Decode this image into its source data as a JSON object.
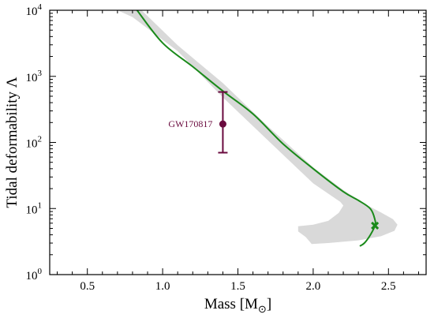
{
  "chart_data": {
    "type": "line",
    "xlabel": "Mass [M",
    "xlabel_sub": "⊙",
    "xlabel_close": "]",
    "ylabel": "Tidal deformability Λ",
    "xlim": [
      0.25,
      2.75
    ],
    "ylim_log10": [
      0,
      4
    ],
    "yscale": "log",
    "x_ticks": [
      0.5,
      1.0,
      1.5,
      2.0,
      2.5
    ],
    "x_tick_labels": [
      "0.5",
      "1.0",
      "1.5",
      "2.0",
      "2.5"
    ],
    "y_ticks": [
      1,
      10,
      100,
      1000,
      10000
    ],
    "y_tick_labels": [
      {
        "base": "10",
        "exp": "0"
      },
      {
        "base": "10",
        "exp": "1"
      },
      {
        "base": "10",
        "exp": "2"
      },
      {
        "base": "10",
        "exp": "3"
      },
      {
        "base": "10",
        "exp": "4"
      }
    ],
    "grid": false,
    "band": {
      "color": "#d9d9d9",
      "outline": [
        [
          0.62,
          10000
        ],
        [
          0.86,
          10000
        ],
        [
          1.1,
          2950
        ],
        [
          1.4,
          790
        ],
        [
          1.7,
          175
        ],
        [
          2.0,
          42
        ],
        [
          2.2,
          19
        ],
        [
          2.35,
          11.5
        ],
        [
          2.45,
          8.7
        ],
        [
          2.53,
          6.9
        ],
        [
          2.56,
          5.7
        ],
        [
          2.54,
          4.6
        ],
        [
          2.45,
          3.8
        ],
        [
          2.3,
          3.3
        ],
        [
          2.1,
          3.0
        ],
        [
          1.99,
          2.9
        ],
        [
          1.95,
          3.7
        ],
        [
          1.9,
          4.5
        ],
        [
          1.9,
          5.4
        ],
        [
          2.0,
          5.7
        ],
        [
          2.1,
          6.5
        ],
        [
          2.17,
          8.6
        ],
        [
          2.2,
          11.1
        ],
        [
          2.18,
          12.6
        ],
        [
          2.0,
          24
        ],
        [
          1.7,
          107
        ],
        [
          1.4,
          480
        ],
        [
          1.1,
          2400
        ],
        [
          0.8,
          7900
        ],
        [
          0.7,
          10000
        ]
      ]
    },
    "curve": {
      "color": "#1a8a1a",
      "points": [
        [
          0.83,
          10000
        ],
        [
          1.0,
          3200
        ],
        [
          1.2,
          1400
        ],
        [
          1.4,
          600
        ],
        [
          1.6,
          270
        ],
        [
          1.8,
          95
        ],
        [
          2.0,
          40
        ],
        [
          2.2,
          18
        ],
        [
          2.3,
          13.3
        ],
        [
          2.38,
          9.9
        ],
        [
          2.41,
          6.8
        ],
        [
          2.41,
          5.5
        ],
        [
          2.38,
          4.0
        ],
        [
          2.34,
          3.0
        ],
        [
          2.31,
          2.7
        ]
      ],
      "endpoint_marker": {
        "x": 2.41,
        "y": 5.5,
        "symbol": "x"
      }
    },
    "measurement": {
      "label": "GW170817",
      "color": "#6a0a3e",
      "x": 1.4,
      "y": 190,
      "y_low": 70,
      "y_high": 580
    }
  }
}
